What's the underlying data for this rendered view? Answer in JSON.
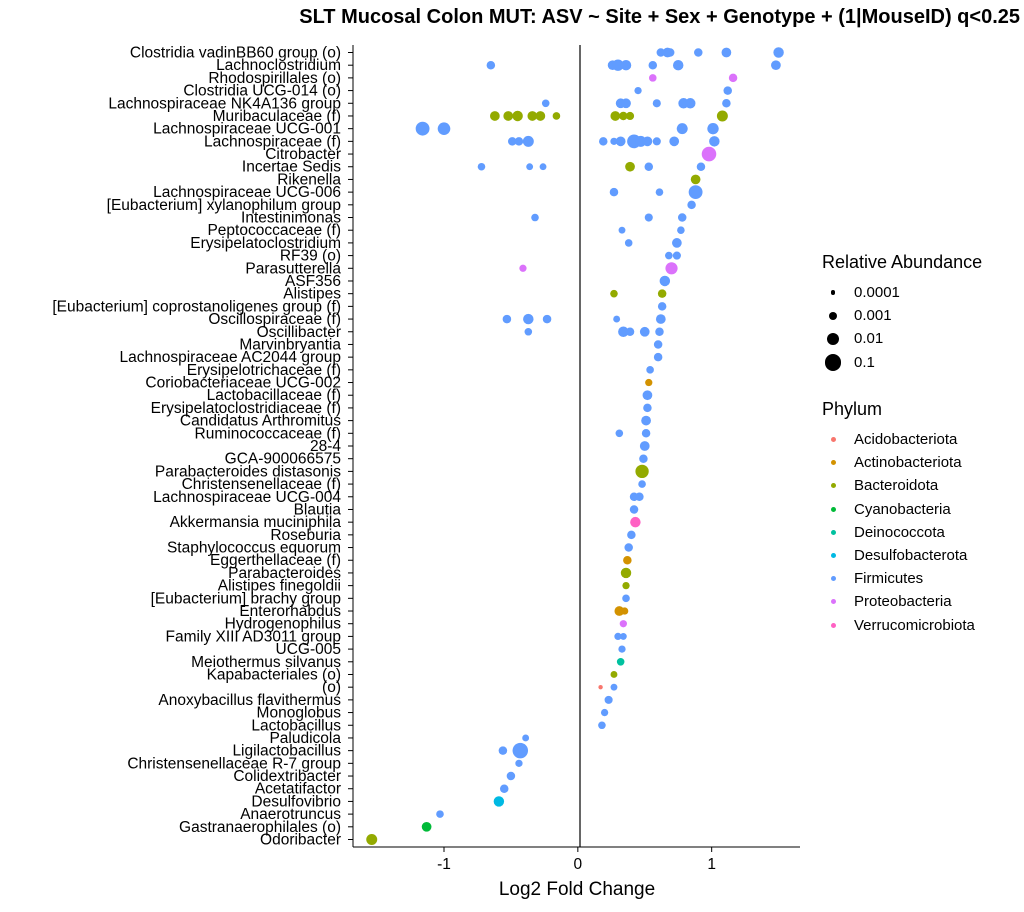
{
  "chart_data": {
    "type": "scatter",
    "title": "SLT Mucosal Colon MUT: ASV ~ Site + Sex + Genotype + (1|MouseID) q<0.25",
    "xlabel": "Log2 Fold Change",
    "ylabel": "",
    "xlim": [
      -1.68,
      1.66
    ],
    "xticks": [
      -1,
      0,
      1
    ],
    "reference_line_x": 0,
    "grid": false,
    "legend_position": "right",
    "categories": [
      "Clostridia vadinBB60 group (o)",
      "Lachnoclostridium",
      "Rhodospirillales (o)",
      "Clostridia UCG-014 (o)",
      "Lachnospiraceae NK4A136 group",
      "Muribaculaceae (f)",
      "Lachnospiraceae UCG-001",
      "Lachnospiraceae (f)",
      "Citrobacter",
      "Incertae Sedis",
      "Rikenella",
      "Lachnospiraceae UCG-006",
      "[Eubacterium] xylanophilum group",
      "Intestinimonas",
      "Peptococcaceae (f)",
      "Erysipelatoclostridium",
      "RF39 (o)",
      "Parasutterella",
      "ASF356",
      "Alistipes",
      "[Eubacterium] coprostanoligenes group (f)",
      "Oscillospiraceae (f)",
      "Oscillibacter",
      "Marvinbryantia",
      "Lachnospiraceae AC2044 group",
      "Erysipelotrichaceae (f)",
      "Coriobacteriaceae UCG-002",
      "Lactobacillaceae (f)",
      "Erysipelatoclostridiaceae (f)",
      "Candidatus Arthromitus",
      "Ruminococcaceae (f)",
      "28-4",
      "GCA-900066575",
      "Parabacteroides distasonis",
      "Christensenellaceae (f)",
      "Lachnospiraceae UCG-004",
      "Blautia",
      "Akkermansia muciniphila",
      "Roseburia",
      "Staphylococcus equorum",
      "Eggerthellaceae (f)",
      "Parabacteroides",
      "Alistipes finegoldii",
      "[Eubacterium] brachy group",
      "Enterorhabdus",
      "Hydrogenophilus",
      "Family XIII AD3011 group",
      "UCG-005",
      "Meiothermus silvanus",
      "Kapabacteriales (o)",
      "(o)",
      "Anoxybacillus flavithermus",
      "Monoglobus",
      "Lactobacillus",
      "Paludicola",
      "Ligilactobacillus",
      "Christensenellaceae R-7 group",
      "Colidextribacter",
      "Acetatifactor",
      "Desulfovibrio",
      "Anaerotruncus",
      "Gastranaerophilales (o)",
      "Odoribacter"
    ],
    "phylum_colors": {
      "Acidobacteriota": "#F8766D",
      "Actinobacteriota": "#D39200",
      "Bacteroidota": "#93AA00",
      "Cyanobacteria": "#00BA38",
      "Deinococcota": "#00C19F",
      "Desulfobacterota": "#00B9E3",
      "Firmicutes": "#619CFF",
      "Proteobacteria": "#DB72FB",
      "Verrucomicrobiota": "#FF61C3"
    },
    "size_legend": [
      {
        "label": "0.0001",
        "value": 0.0001
      },
      {
        "label": "0.001",
        "value": 0.001
      },
      {
        "label": "0.01",
        "value": 0.01
      },
      {
        "label": "0.1",
        "value": 0.1
      }
    ],
    "series_format": "[log2FC, relative abundance]",
    "series": [
      {
        "name": "Acidobacteriota",
        "points": {
          "(o)": [
            [
              0.17,
              0.0001
            ]
          ]
        }
      },
      {
        "name": "Actinobacteriota",
        "points": {
          "Coriobacteriaceae UCG-002": [
            [
              0.53,
              0.0005
            ]
          ],
          "Eggerthellaceae (f)": [
            [
              0.37,
              0.001
            ]
          ],
          "Enterorhabdus": [
            [
              0.31,
              0.002
            ],
            [
              0.35,
              0.0005
            ]
          ]
        }
      },
      {
        "name": "Bacteroidota",
        "points": {
          "Muribaculaceae (f)": [
            [
              -0.62,
              0.002
            ],
            [
              -0.52,
              0.002
            ],
            [
              -0.45,
              0.003
            ],
            [
              -0.34,
              0.002
            ],
            [
              -0.28,
              0.002
            ],
            [
              -0.16,
              0.0006
            ],
            [
              0.28,
              0.002
            ],
            [
              0.34,
              0.001
            ],
            [
              0.39,
              0.0008
            ],
            [
              1.08,
              0.004
            ]
          ],
          "Rikenella": [
            [
              0.88,
              0.002
            ]
          ],
          "Alistipes": [
            [
              0.27,
              0.0006
            ],
            [
              0.63,
              0.001
            ]
          ],
          "Parabacteroides distasonis": [
            [
              0.48,
              0.015
            ]
          ],
          "Parabacteroides": [
            [
              0.36,
              0.003
            ]
          ],
          "Alistipes finegoldii": [
            [
              0.36,
              0.0005
            ]
          ],
          "Kapabacteriales (o)": [
            [
              0.27,
              0.0004
            ]
          ],
          "Rhodospirillales (o)": [],
          "Citrobacter": [],
          "Incertae Sedis": [
            [
              0.39,
              0.002
            ]
          ],
          "Odoribacter": [
            [
              -1.54,
              0.004
            ]
          ]
        }
      },
      {
        "name": "Cyanobacteria",
        "points": {
          "Gastranaerophilales (o)": [
            [
              -1.13,
              0.002
            ]
          ]
        }
      },
      {
        "name": "Deinococcota",
        "points": {
          "Meiothermus silvanus": [
            [
              0.32,
              0.0006
            ]
          ]
        }
      },
      {
        "name": "Desulfobacterota",
        "points": {
          "Desulfovibrio": [
            [
              -0.59,
              0.003
            ]
          ]
        }
      },
      {
        "name": "Firmicutes",
        "points": {
          "Clostridia vadinBB60 group (o)": [
            [
              0.62,
              0.001
            ],
            [
              0.67,
              0.002
            ],
            [
              0.69,
              0.001
            ],
            [
              0.9,
              0.001
            ],
            [
              1.11,
              0.002
            ],
            [
              1.5,
              0.003
            ]
          ],
          "Lachnoclostridium": [
            [
              -0.65,
              0.001
            ],
            [
              0.26,
              0.002
            ],
            [
              0.3,
              0.005
            ],
            [
              0.36,
              0.003
            ],
            [
              0.56,
              0.001
            ],
            [
              0.75,
              0.003
            ],
            [
              1.48,
              0.002
            ]
          ],
          "Clostridia UCG-014 (o)": [
            [
              0.45,
              0.0005
            ],
            [
              1.12,
              0.001
            ]
          ],
          "Lachnospiraceae NK4A136 group": [
            [
              -0.24,
              0.0006
            ],
            [
              0.32,
              0.002
            ],
            [
              0.36,
              0.002
            ],
            [
              0.59,
              0.0008
            ],
            [
              0.79,
              0.003
            ],
            [
              0.84,
              0.003
            ],
            [
              1.11,
              0.001
            ]
          ],
          "Lachnospiraceae UCG-001": [
            [
              -1.16,
              0.02
            ],
            [
              -1.0,
              0.01
            ],
            [
              0.78,
              0.004
            ],
            [
              1.01,
              0.005
            ]
          ],
          "Lachnospiraceae (f)": [
            [
              -0.49,
              0.001
            ],
            [
              -0.44,
              0.001
            ],
            [
              -0.37,
              0.004
            ],
            [
              0.19,
              0.001
            ],
            [
              0.27,
              0.0005
            ],
            [
              0.32,
              0.002
            ],
            [
              0.42,
              0.02
            ],
            [
              0.47,
              0.004
            ],
            [
              0.52,
              0.002
            ],
            [
              0.59,
              0.0008
            ],
            [
              0.72,
              0.002
            ],
            [
              1.02,
              0.003
            ]
          ],
          "Incertae Sedis": [
            [
              -0.72,
              0.0006
            ],
            [
              -0.36,
              0.0004
            ],
            [
              -0.26,
              0.0004
            ],
            [
              0.53,
              0.001
            ],
            [
              0.92,
              0.001
            ]
          ],
          "Lachnospiraceae UCG-006": [
            [
              0.27,
              0.001
            ],
            [
              0.61,
              0.0006
            ],
            [
              0.88,
              0.02
            ]
          ],
          "[Eubacterium] xylanophilum group": [
            [
              0.85,
              0.001
            ]
          ],
          "Intestinimonas": [
            [
              -0.32,
              0.0006
            ],
            [
              0.53,
              0.0008
            ],
            [
              0.78,
              0.001
            ]
          ],
          "Peptococcaceae (f)": [
            [
              0.33,
              0.0004
            ],
            [
              0.77,
              0.0006
            ]
          ],
          "Erysipelatoclostridium": [
            [
              0.38,
              0.0006
            ],
            [
              0.74,
              0.002
            ]
          ],
          "RF39 (o)": [
            [
              0.68,
              0.0006
            ],
            [
              0.74,
              0.0008
            ]
          ],
          "ASF356": [
            [
              0.65,
              0.003
            ]
          ],
          "[Eubacterium] coprostanoligenes group (f)": [
            [
              0.63,
              0.001
            ]
          ],
          "Oscillospiraceae (f)": [
            [
              -0.53,
              0.001
            ],
            [
              -0.37,
              0.003
            ],
            [
              -0.23,
              0.001
            ],
            [
              0.29,
              0.0004
            ],
            [
              0.62,
              0.002
            ]
          ],
          "Oscillibacter": [
            [
              -0.37,
              0.0006
            ],
            [
              0.34,
              0.003
            ],
            [
              0.39,
              0.001
            ],
            [
              0.5,
              0.002
            ],
            [
              0.61,
              0.001
            ]
          ],
          "Marvinbryantia": [
            [
              0.6,
              0.001
            ]
          ],
          "Lachnospiraceae AC2044 group": [
            [
              0.6,
              0.001
            ]
          ],
          "Erysipelotrichaceae (f)": [
            [
              0.54,
              0.0006
            ]
          ],
          "Lactobacillaceae (f)": [
            [
              0.52,
              0.002
            ]
          ],
          "Erysipelatoclostridiaceae (f)": [
            [
              0.52,
              0.001
            ]
          ],
          "Candidatus Arthromitus": [
            [
              0.51,
              0.002
            ]
          ],
          "Ruminococcaceae (f)": [
            [
              0.31,
              0.0006
            ],
            [
              0.51,
              0.001
            ]
          ],
          "28-4": [
            [
              0.5,
              0.002
            ]
          ],
          "GCA-900066575": [
            [
              0.49,
              0.001
            ]
          ],
          "Christensenellaceae (f)": [
            [
              0.48,
              0.0006
            ]
          ],
          "Lachnospiraceae UCG-004": [
            [
              0.42,
              0.001
            ],
            [
              0.46,
              0.001
            ]
          ],
          "Blautia": [
            [
              0.42,
              0.001
            ]
          ],
          "Roseburia": [
            [
              0.4,
              0.001
            ]
          ],
          "Staphylococcus equorum": [
            [
              0.38,
              0.001
            ]
          ],
          "[Eubacterium] brachy group": [
            [
              0.36,
              0.0006
            ]
          ],
          "Family XIII AD3011 group": [
            [
              0.3,
              0.0005
            ],
            [
              0.34,
              0.0004
            ]
          ],
          "UCG-005": [
            [
              0.33,
              0.0005
            ]
          ],
          "(o)": [
            [
              0.27,
              0.0004
            ]
          ],
          "Anoxybacillus flavithermus": [
            [
              0.23,
              0.0008
            ]
          ],
          "Monoglobus": [
            [
              0.2,
              0.0005
            ]
          ],
          "Lactobacillus": [
            [
              0.18,
              0.0006
            ]
          ],
          "Paludicola": [
            [
              -0.39,
              0.0004
            ]
          ],
          "Ligilactobacillus": [
            [
              -0.56,
              0.001
            ],
            [
              -0.43,
              0.05
            ]
          ],
          "Christensenellaceae R-7 group": [
            [
              -0.44,
              0.0005
            ]
          ],
          "Colidextribacter": [
            [
              -0.5,
              0.001
            ]
          ],
          "Acetatifactor": [
            [
              -0.55,
              0.001
            ]
          ],
          "Anaerotruncus": [
            [
              -1.03,
              0.0006
            ]
          ]
        }
      },
      {
        "name": "Proteobacteria",
        "points": {
          "Rhodospirillales (o)": [
            [
              0.56,
              0.0006
            ],
            [
              1.16,
              0.001
            ]
          ],
          "Citrobacter": [
            [
              0.98,
              0.03
            ]
          ],
          "Parasutterella": [
            [
              -0.41,
              0.0005
            ],
            [
              0.7,
              0.008
            ]
          ],
          "Hydrogenophilus": [
            [
              0.34,
              0.0005
            ]
          ]
        }
      },
      {
        "name": "Verrucomicrobiota",
        "points": {
          "Akkermansia muciniphila": [
            [
              0.43,
              0.003
            ]
          ]
        }
      }
    ]
  },
  "legends": {
    "size_title": "Relative Abundance",
    "color_title": "Phylum"
  }
}
